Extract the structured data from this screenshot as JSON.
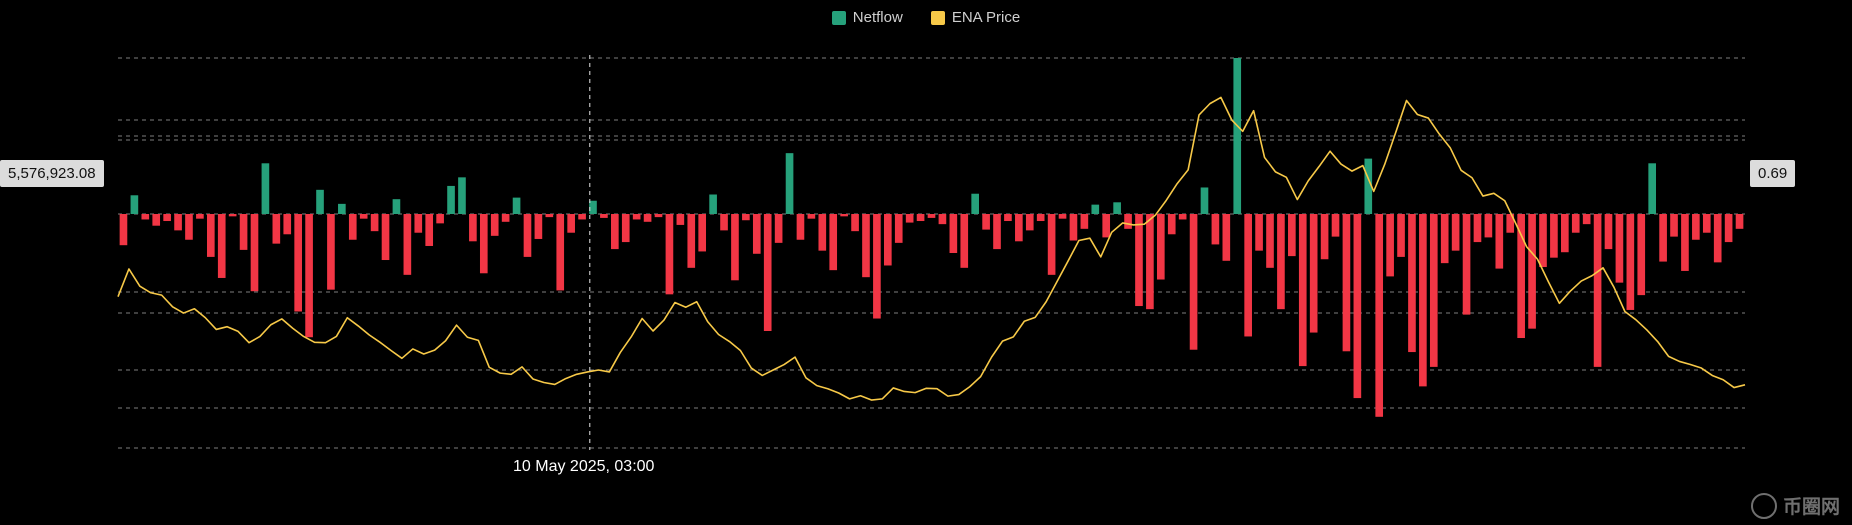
{
  "legend": {
    "netflow_label": "Netflow",
    "price_label": "ENA Price"
  },
  "colors": {
    "background": "#000000",
    "inflow": "#26a17b",
    "outflow": "#f23645",
    "price": "#f7c948",
    "grid": "#e6e6e6"
  },
  "crosshair": {
    "y_left_value": "5,576,923.08",
    "y_right_value": "0.69",
    "x_value": "10 May 2025, 03:00"
  },
  "watermark": "币圈网",
  "chart_data": {
    "type": "bar+line",
    "title": "",
    "xlabel": "",
    "ylabel": "",
    "grid": true,
    "legend_position": "top-center",
    "left_axis": {
      "series": "Netflow",
      "ylim": [
        -30000000,
        20000000
      ]
    },
    "right_axis": {
      "series": "ENA Price",
      "ylim": [
        0.0,
        1.0
      ]
    },
    "crosshair_x_fraction": 0.29,
    "series": [
      {
        "name": "Netflow",
        "type": "bar",
        "points": 150,
        "values": [
          -4000000,
          2400000,
          -700000,
          -1500000,
          -900000,
          -2100000,
          -3300000,
          -600000,
          -5500000,
          -8200000,
          -300000,
          -4600000,
          -9900000,
          6500000,
          -3800000,
          -2600000,
          -12500000,
          -15800000,
          3100000,
          -9700000,
          1300000,
          -3300000,
          -600000,
          -2200000,
          -5900000,
          1900000,
          -7800000,
          -2400000,
          -4100000,
          -1200000,
          3600000,
          4700000,
          -3500000,
          -7600000,
          -2800000,
          -1000000,
          2100000,
          -5500000,
          -3200000,
          -400000,
          -9800000,
          -2400000,
          -700000,
          1700000,
          -500000,
          -4500000,
          -3600000,
          -700000,
          -1000000,
          -400000,
          -10300000,
          -1400000,
          -6900000,
          -4800000,
          2500000,
          -2100000,
          -8500000,
          -800000,
          -5100000,
          -15000000,
          -3700000,
          7800000,
          -3300000,
          -600000,
          -4700000,
          -7200000,
          -300000,
          -2200000,
          -8100000,
          -13400000,
          -6600000,
          -3700000,
          -1100000,
          -900000,
          -500000,
          -1300000,
          -5000000,
          -6900000,
          2600000,
          -2000000,
          -4500000,
          -900000,
          -3500000,
          -2100000,
          -900000,
          -7800000,
          -600000,
          -3400000,
          -1900000,
          1200000,
          -3000000,
          1500000,
          -1900000,
          -11800000,
          -12200000,
          -8400000,
          -2600000,
          -700000,
          -17400000,
          3400000,
          -3900000,
          -6000000,
          20000000,
          -15700000,
          -4700000,
          -6900000,
          -12200000,
          -5400000,
          -19500000,
          -15200000,
          -5800000,
          -2900000,
          -17600000,
          -23600000,
          7100000,
          -26000000,
          -8000000,
          -5500000,
          -17700000,
          -22100000,
          -19600000,
          -6300000,
          -4700000,
          -12900000,
          -3600000,
          -3000000,
          -7000000,
          -2400000,
          -15900000,
          -14700000,
          -6800000,
          -5600000,
          -4900000,
          -2400000,
          -1300000,
          -19600000,
          -4500000,
          -8800000,
          -12300000,
          -10400000,
          6500000,
          -6100000,
          -2900000,
          -7300000,
          -3300000,
          -2400000,
          -6200000,
          -3600000,
          -1900000
        ]
      },
      {
        "name": "ENA Price",
        "type": "line",
        "points": 150,
        "values": [
          0.388,
          0.459,
          0.415,
          0.398,
          0.392,
          0.362,
          0.346,
          0.357,
          0.334,
          0.304,
          0.311,
          0.299,
          0.27,
          0.286,
          0.316,
          0.331,
          0.307,
          0.286,
          0.271,
          0.27,
          0.286,
          0.334,
          0.313,
          0.29,
          0.271,
          0.25,
          0.23,
          0.254,
          0.241,
          0.251,
          0.275,
          0.315,
          0.284,
          0.276,
          0.207,
          0.192,
          0.189,
          0.208,
          0.177,
          0.168,
          0.163,
          0.178,
          0.189,
          0.195,
          0.2,
          0.195,
          0.245,
          0.285,
          0.332,
          0.3,
          0.328,
          0.373,
          0.361,
          0.375,
          0.324,
          0.291,
          0.273,
          0.25,
          0.205,
          0.186,
          0.2,
          0.214,
          0.233,
          0.18,
          0.16,
          0.152,
          0.141,
          0.126,
          0.134,
          0.123,
          0.126,
          0.154,
          0.145,
          0.142,
          0.153,
          0.152,
          0.133,
          0.137,
          0.157,
          0.183,
          0.233,
          0.274,
          0.285,
          0.325,
          0.335,
          0.375,
          0.427,
          0.479,
          0.532,
          0.538,
          0.49,
          0.553,
          0.577,
          0.572,
          0.574,
          0.597,
          0.635,
          0.678,
          0.713,
          0.854,
          0.883,
          0.899,
          0.841,
          0.812,
          0.865,
          0.745,
          0.708,
          0.694,
          0.637,
          0.685,
          0.722,
          0.761,
          0.728,
          0.71,
          0.724,
          0.658,
          0.727,
          0.808,
          0.891,
          0.855,
          0.846,
          0.805,
          0.77,
          0.712,
          0.693,
          0.646,
          0.653,
          0.634,
          0.576,
          0.516,
          0.484,
          0.426,
          0.371,
          0.402,
          0.428,
          0.442,
          0.462,
          0.412,
          0.35,
          0.329,
          0.303,
          0.273,
          0.235,
          0.222,
          0.214,
          0.205,
          0.186,
          0.175,
          0.155,
          0.162
        ]
      }
    ]
  }
}
